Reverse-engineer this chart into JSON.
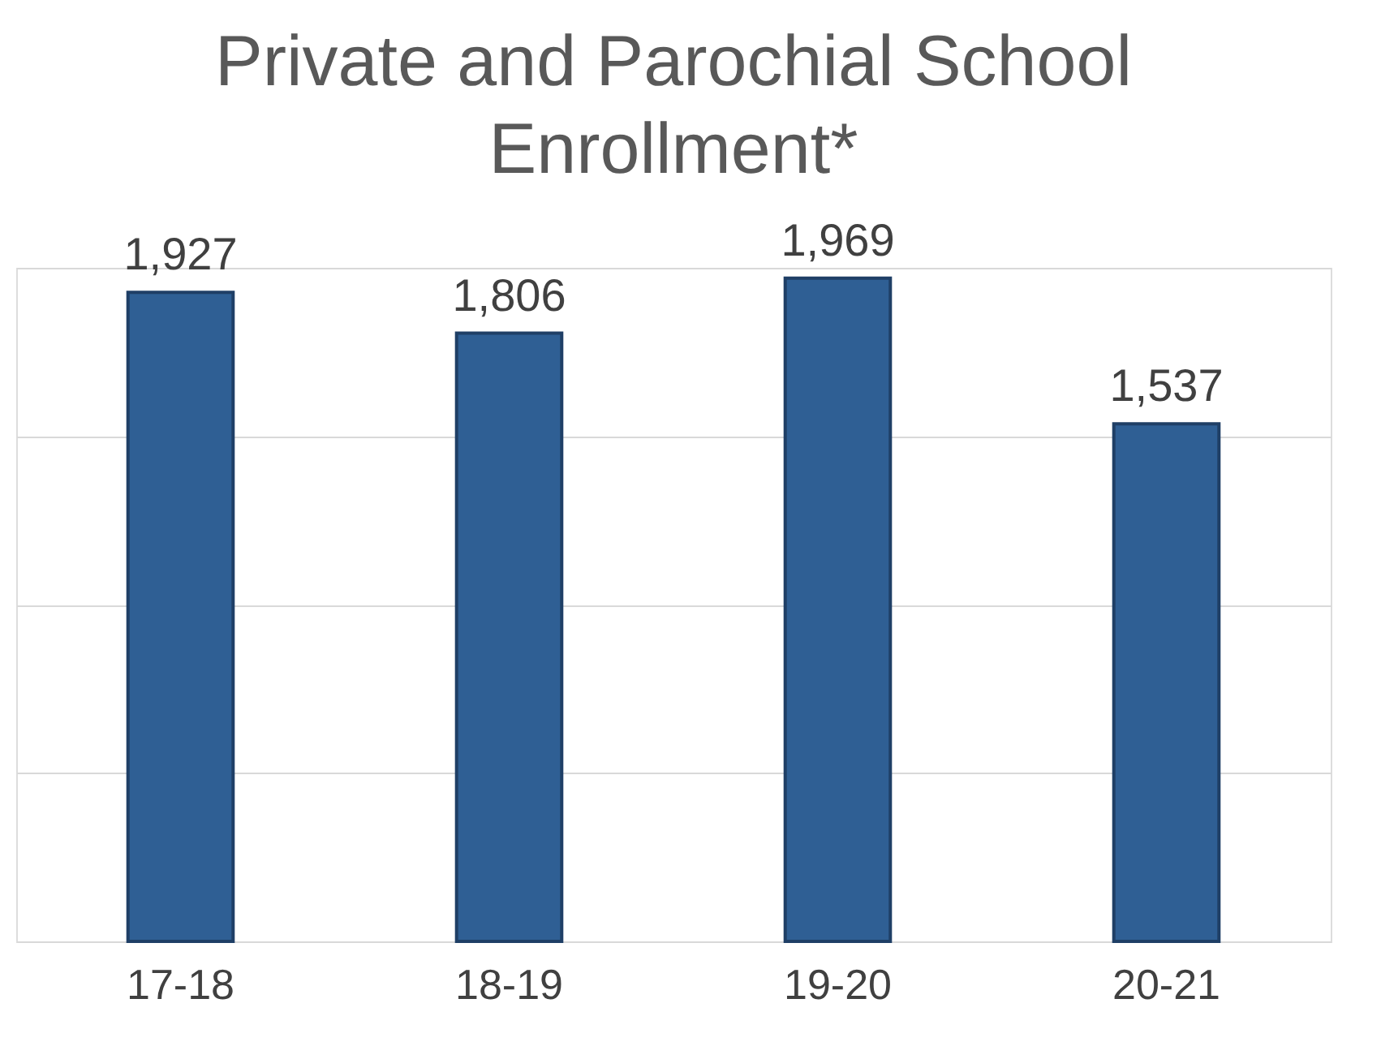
{
  "chart_data": {
    "type": "bar",
    "title": "Private and Parochial School Enrollment*",
    "categories": [
      "17-18",
      "18-19",
      "19-20",
      "20-21"
    ],
    "values": [
      1927,
      1806,
      1969,
      1537
    ],
    "value_labels": [
      "1,927",
      "1,806",
      "1,969",
      "1,537"
    ],
    "color": "#2f5f94",
    "grid": "y",
    "tick_labels": "x"
  }
}
